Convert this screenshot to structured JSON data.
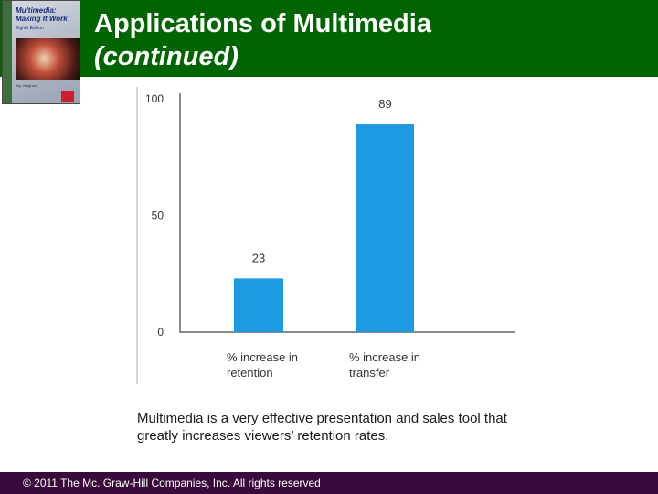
{
  "slide": {
    "title": "Applications of Multimedia",
    "title_continued": "(continued)",
    "caption": "Multimedia is a very effective presentation and sales tool that greatly increases viewers’ retention rates.",
    "footer": "© 2011 The Mc. Graw-Hill Companies, Inc. All rights reserved"
  },
  "book": {
    "title": "Multimedia: Making It Work",
    "edition": "Eighth Edition",
    "author": "Tay Vaughan"
  },
  "colors": {
    "header": "#006400",
    "footer": "#3a0a3a",
    "bar": "#1e9be0"
  },
  "chart_data": {
    "type": "bar",
    "categories": [
      "% increase in retention",
      "% increase in transfer"
    ],
    "category_lines": [
      [
        "% increase in",
        "retention"
      ],
      [
        "% increase in",
        "transfer"
      ]
    ],
    "values": [
      23,
      89
    ],
    "data_labels": [
      "23",
      "89"
    ],
    "yticks": [
      0,
      50,
      100
    ],
    "ylim": [
      0,
      100
    ],
    "title": "",
    "xlabel": "",
    "ylabel": "",
    "grid": false,
    "legend": "none"
  }
}
